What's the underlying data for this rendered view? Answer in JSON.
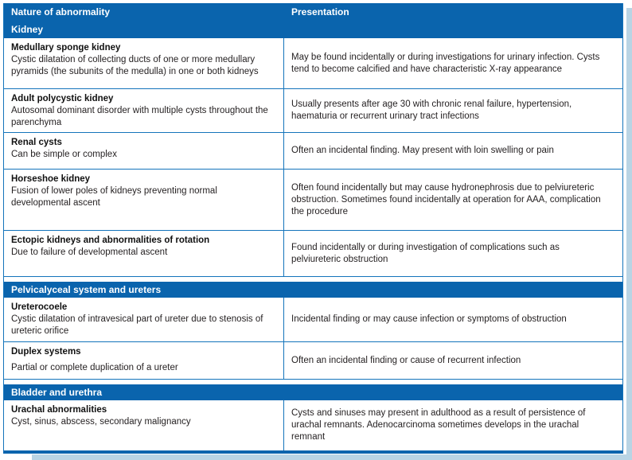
{
  "colors": {
    "header_blue": "#0a64ad",
    "grid_blue": "#1474bb",
    "shadow_light_blue": "#b9d4e4",
    "text": "#231f20"
  },
  "table": {
    "columns": [
      "Nature of abnormality",
      "Presentation"
    ],
    "sections": [
      {
        "header": "Kidney",
        "rows": [
          {
            "title": "Medullary sponge kidney",
            "description": "Cystic dilatation of collecting ducts of one or more medullary pyramids (the subunits of the medulla) in one or both kidneys",
            "presentation": "May be found incidentally or during investigations for urinary infection. Cysts tend to become calcified and have characteristic X-ray appearance"
          },
          {
            "title": "Adult polycystic kidney",
            "description": "Autosomal dominant disorder with multiple cysts throughout the parenchyma",
            "presentation": "Usually presents after age 30 with chronic renal failure, hypertension, haematuria or recurrent urinary tract infections"
          },
          {
            "title": "Renal cysts",
            "description": "Can be simple or complex",
            "presentation": "Often an incidental finding. May present with loin swelling or pain"
          },
          {
            "title": "Horseshoe kidney",
            "description": "Fusion of lower poles of kidneys preventing normal developmental ascent",
            "presentation": "Often found incidentally but may cause hydronephrosis due to pelviureteric obstruction. Sometimes found incidentally at operation for AAA, complication the procedure"
          },
          {
            "title": "Ectopic kidneys and abnormalities of rotation",
            "description": "Due to failure of developmental ascent",
            "presentation": "Found incidentally or during investigation of complications such as pelviureteric obstruction"
          }
        ]
      },
      {
        "header": "Pelvicalyceal system and ureters",
        "rows": [
          {
            "title": "Ureterocoele",
            "description": "Cystic dilatation of intravesical part of ureter due to stenosis of ureteric orifice",
            "presentation": "Incidental finding or may cause infection or symptoms of obstruction"
          },
          {
            "title": "Duplex systems",
            "description": "Partial or complete duplication of a ureter",
            "presentation": "Often an incidental finding or cause of recurrent infection"
          }
        ]
      },
      {
        "header": "Bladder and urethra",
        "rows": [
          {
            "title": "Urachal abnormalities",
            "description": "Cyst, sinus, abscess, secondary malignancy",
            "presentation": "Cysts and sinuses may present in adulthood as a result of persistence of urachal remnants. Adenocarcinoma sometimes develops in the urachal remnant"
          }
        ]
      }
    ]
  }
}
